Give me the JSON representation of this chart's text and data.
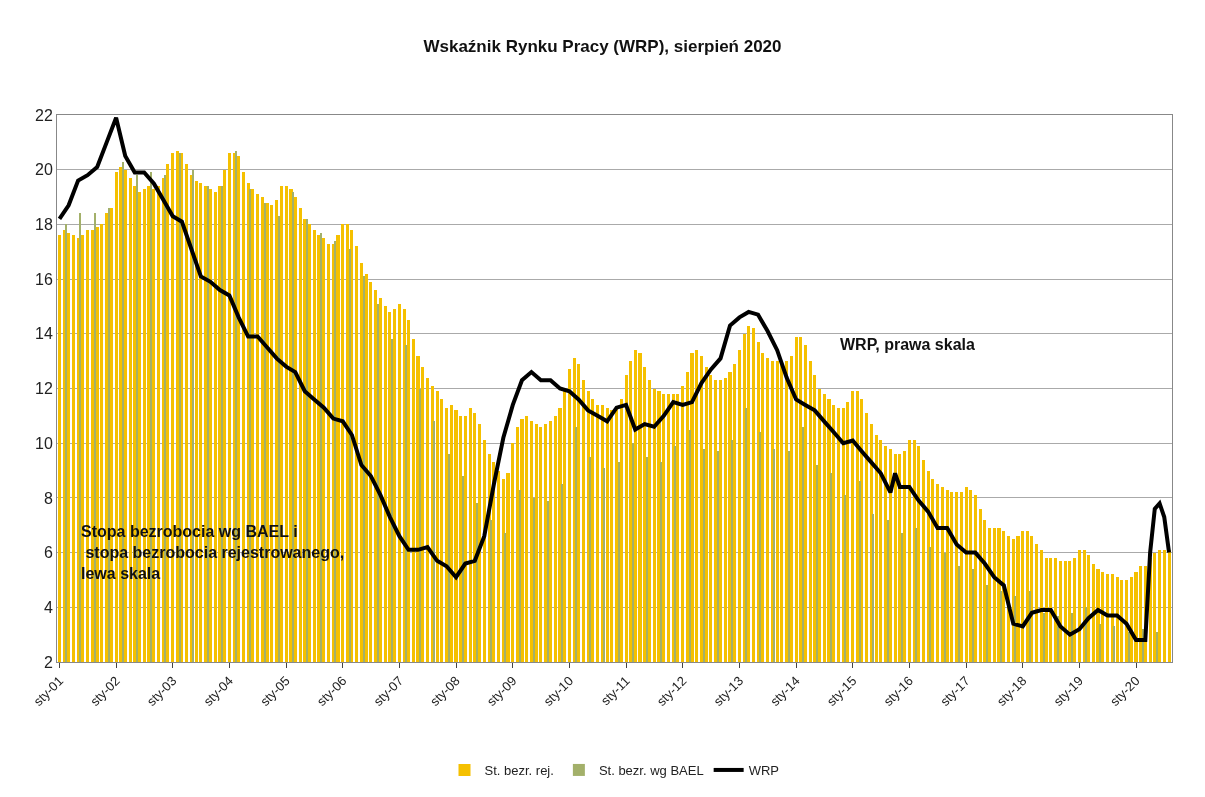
{
  "chart_data": {
    "type": "bar",
    "title": "Wskaźnik Rynku Pracy (WRP), sierpień 2020",
    "annotations": [
      "Stopa bezrobocia wg BAEL i\n stopa bezrobocia rejestrowanego,\nlewa skala",
      "WRP, prawa skala"
    ],
    "ylim": [
      2,
      22
    ],
    "yticks": [
      2,
      4,
      6,
      8,
      10,
      12,
      14,
      16,
      18,
      20,
      22
    ],
    "xlim": [
      "2000-12-16",
      "2020-08-20"
    ],
    "xticks": [
      {
        "value": "2001-01-01",
        "label": "sty-01"
      },
      {
        "value": "2002-01-01",
        "label": "sty-02"
      },
      {
        "value": "2003-01-01",
        "label": "sty-03"
      },
      {
        "value": "2004-01-01",
        "label": "sty-04"
      },
      {
        "value": "2005-01-01",
        "label": "sty-05"
      },
      {
        "value": "2006-01-01",
        "label": "sty-06"
      },
      {
        "value": "2007-01-01",
        "label": "sty-07"
      },
      {
        "value": "2008-01-01",
        "label": "sty-08"
      },
      {
        "value": "2009-01-01",
        "label": "sty-09"
      },
      {
        "value": "2010-01-01",
        "label": "sty-10"
      },
      {
        "value": "2011-01-01",
        "label": "sty-11"
      },
      {
        "value": "2012-01-01",
        "label": "sty-12"
      },
      {
        "value": "2013-01-01",
        "label": "sty-13"
      },
      {
        "value": "2014-01-01",
        "label": "sty-14"
      },
      {
        "value": "2015-01-01",
        "label": "sty-15"
      },
      {
        "value": "2016-01-01",
        "label": "sty-16"
      },
      {
        "value": "2017-01-01",
        "label": "sty-17"
      },
      {
        "value": "2018-01-01",
        "label": "sty-18"
      },
      {
        "value": "2019-01-01",
        "label": "sty-19"
      },
      {
        "value": "2020-01-01",
        "label": "sty-20"
      }
    ],
    "grid": "y",
    "legend": "bottom",
    "series": [
      {
        "name": "St. bezr. rej.",
        "color": "#f5c000",
        "x": [
          "2001-01",
          "2001-02",
          "2001-03",
          "2001-04",
          "2001-05",
          "2001-06",
          "2001-07",
          "2001-08",
          "2001-09",
          "2001-10",
          "2001-11",
          "2001-12",
          "2002-01",
          "2002-02",
          "2002-03",
          "2002-04",
          "2002-05",
          "2002-06",
          "2002-07",
          "2002-08",
          "2002-09",
          "2002-10",
          "2002-11",
          "2002-12",
          "2003-01",
          "2003-02",
          "2003-03",
          "2003-04",
          "2003-05",
          "2003-06",
          "2003-07",
          "2003-08",
          "2003-09",
          "2003-10",
          "2003-11",
          "2003-12",
          "2004-01",
          "2004-02",
          "2004-03",
          "2004-04",
          "2004-05",
          "2004-06",
          "2004-07",
          "2004-08",
          "2004-09",
          "2004-10",
          "2004-11",
          "2004-12",
          "2005-01",
          "2005-02",
          "2005-03",
          "2005-04",
          "2005-05",
          "2005-06",
          "2005-07",
          "2005-08",
          "2005-09",
          "2005-10",
          "2005-11",
          "2005-12",
          "2006-01",
          "2006-02",
          "2006-03",
          "2006-04",
          "2006-05",
          "2006-06",
          "2006-07",
          "2006-08",
          "2006-09",
          "2006-10",
          "2006-11",
          "2006-12",
          "2007-01",
          "2007-02",
          "2007-03",
          "2007-04",
          "2007-05",
          "2007-06",
          "2007-07",
          "2007-08",
          "2007-09",
          "2007-10",
          "2007-11",
          "2007-12",
          "2008-01",
          "2008-02",
          "2008-03",
          "2008-04",
          "2008-05",
          "2008-06",
          "2008-07",
          "2008-08",
          "2008-09",
          "2008-10",
          "2008-11",
          "2008-12",
          "2009-01",
          "2009-02",
          "2009-03",
          "2009-04",
          "2009-05",
          "2009-06",
          "2009-07",
          "2009-08",
          "2009-09",
          "2009-10",
          "2009-11",
          "2009-12",
          "2010-01",
          "2010-02",
          "2010-03",
          "2010-04",
          "2010-05",
          "2010-06",
          "2010-07",
          "2010-08",
          "2010-09",
          "2010-10",
          "2010-11",
          "2010-12",
          "2011-01",
          "2011-02",
          "2011-03",
          "2011-04",
          "2011-05",
          "2011-06",
          "2011-07",
          "2011-08",
          "2011-09",
          "2011-10",
          "2011-11",
          "2011-12",
          "2012-01",
          "2012-02",
          "2012-03",
          "2012-04",
          "2012-05",
          "2012-06",
          "2012-07",
          "2012-08",
          "2012-09",
          "2012-10",
          "2012-11",
          "2012-12",
          "2013-01",
          "2013-02",
          "2013-03",
          "2013-04",
          "2013-05",
          "2013-06",
          "2013-07",
          "2013-08",
          "2013-09",
          "2013-10",
          "2013-11",
          "2013-12",
          "2014-01",
          "2014-02",
          "2014-03",
          "2014-04",
          "2014-05",
          "2014-06",
          "2014-07",
          "2014-08",
          "2014-09",
          "2014-10",
          "2014-11",
          "2014-12",
          "2015-01",
          "2015-02",
          "2015-03",
          "2015-04",
          "2015-05",
          "2015-06",
          "2015-07",
          "2015-08",
          "2015-09",
          "2015-10",
          "2015-11",
          "2015-12",
          "2016-01",
          "2016-02",
          "2016-03",
          "2016-04",
          "2016-05",
          "2016-06",
          "2016-07",
          "2016-08",
          "2016-09",
          "2016-10",
          "2016-11",
          "2016-12",
          "2017-01",
          "2017-02",
          "2017-03",
          "2017-04",
          "2017-05",
          "2017-06",
          "2017-07",
          "2017-08",
          "2017-09",
          "2017-10",
          "2017-11",
          "2017-12",
          "2018-01",
          "2018-02",
          "2018-03",
          "2018-04",
          "2018-05",
          "2018-06",
          "2018-07",
          "2018-08",
          "2018-09",
          "2018-10",
          "2018-11",
          "2018-12",
          "2019-01",
          "2019-02",
          "2019-03",
          "2019-04",
          "2019-05",
          "2019-06",
          "2019-07",
          "2019-08",
          "2019-09",
          "2019-10",
          "2019-11",
          "2019-12",
          "2020-01",
          "2020-02",
          "2020-03",
          "2020-04",
          "2020-05",
          "2020-06",
          "2020-07",
          "2020-08"
        ],
        "values": [
          17.6,
          17.8,
          17.7,
          17.6,
          17.5,
          17.6,
          17.8,
          17.8,
          17.9,
          18.0,
          18.4,
          18.6,
          19.9,
          20.1,
          20.0,
          19.7,
          19.4,
          19.2,
          19.3,
          19.4,
          19.3,
          19.4,
          19.7,
          20.2,
          20.6,
          20.7,
          20.6,
          20.2,
          19.8,
          19.6,
          19.5,
          19.4,
          19.3,
          19.2,
          19.4,
          20.0,
          20.6,
          20.6,
          20.5,
          19.9,
          19.5,
          19.3,
          19.1,
          19.0,
          18.8,
          18.7,
          18.9,
          19.4,
          19.4,
          19.3,
          19.0,
          18.6,
          18.2,
          18.0,
          17.8,
          17.6,
          17.5,
          17.3,
          17.3,
          17.6,
          18.0,
          18.0,
          17.8,
          17.2,
          16.6,
          16.2,
          15.9,
          15.6,
          15.3,
          15.0,
          14.8,
          14.9,
          15.1,
          14.9,
          14.5,
          13.8,
          13.2,
          12.8,
          12.4,
          12.1,
          11.9,
          11.6,
          11.3,
          11.4,
          11.2,
          11.0,
          11.0,
          11.3,
          11.1,
          10.7,
          10.1,
          9.6,
          9.3,
          9.0,
          8.7,
          8.9,
          10.0,
          10.6,
          10.9,
          11.0,
          10.8,
          10.7,
          10.6,
          10.7,
          10.8,
          11.0,
          11.3,
          11.9,
          12.7,
          13.1,
          12.9,
          12.3,
          11.9,
          11.6,
          11.4,
          11.4,
          11.3,
          11.2,
          11.3,
          11.6,
          12.5,
          13.0,
          13.4,
          13.3,
          12.8,
          12.3,
          12.0,
          11.9,
          11.8,
          11.8,
          11.8,
          11.8,
          12.1,
          12.6,
          13.3,
          13.4,
          13.2,
          12.8,
          12.5,
          12.3,
          12.3,
          12.4,
          12.6,
          12.9,
          13.4,
          14.0,
          14.3,
          14.2,
          13.7,
          13.3,
          13.1,
          13.0,
          13.0,
          13.0,
          13.0,
          13.2,
          13.9,
          13.9,
          13.6,
          13.0,
          12.5,
          12.0,
          11.8,
          11.6,
          11.4,
          11.3,
          11.3,
          11.5,
          11.9,
          11.9,
          11.6,
          11.1,
          10.7,
          10.3,
          10.1,
          9.9,
          9.8,
          9.6,
          9.6,
          9.7,
          10.1,
          10.1,
          9.9,
          9.4,
          9.0,
          8.7,
          8.5,
          8.4,
          8.3,
          8.2,
          8.2,
          8.2,
          8.4,
          8.3,
          8.1,
          7.6,
          7.2,
          6.9,
          6.9,
          6.9,
          6.8,
          6.6,
          6.5,
          6.6,
          6.8,
          6.8,
          6.6,
          6.3,
          6.1,
          5.8,
          5.8,
          5.8,
          5.7,
          5.7,
          5.7,
          5.8,
          6.1,
          6.1,
          5.9,
          5.6,
          5.4,
          5.3,
          5.2,
          5.2,
          5.1,
          5.0,
          5.0,
          5.1,
          5.3,
          5.5,
          5.5,
          5.8,
          6.0,
          6.1,
          6.1,
          6.1
        ]
      },
      {
        "name": "St. bezr. wg BAEL",
        "color": "#a3b06a",
        "x": [
          "2001-02",
          "2001-05",
          "2001-08",
          "2001-11",
          "2002-02",
          "2002-05",
          "2002-08",
          "2002-11",
          "2003-02",
          "2003-05",
          "2003-08",
          "2003-11",
          "2004-02",
          "2004-05",
          "2004-08",
          "2004-11",
          "2005-02",
          "2005-05",
          "2005-08",
          "2005-11",
          "2006-02",
          "2006-05",
          "2006-08",
          "2006-11",
          "2007-02",
          "2007-05",
          "2007-08",
          "2007-11",
          "2008-02",
          "2008-05",
          "2008-08",
          "2008-11",
          "2009-02",
          "2009-05",
          "2009-08",
          "2009-11",
          "2010-02",
          "2010-05",
          "2010-08",
          "2010-11",
          "2011-02",
          "2011-05",
          "2011-08",
          "2011-11",
          "2012-02",
          "2012-05",
          "2012-08",
          "2012-11",
          "2013-02",
          "2013-05",
          "2013-08",
          "2013-11",
          "2014-02",
          "2014-05",
          "2014-08",
          "2014-11",
          "2015-02",
          "2015-05",
          "2015-08",
          "2015-11",
          "2016-02",
          "2016-05",
          "2016-08",
          "2016-11",
          "2017-02",
          "2017-05",
          "2017-08",
          "2017-11",
          "2018-02",
          "2018-05",
          "2018-08",
          "2018-11",
          "2019-02",
          "2019-05",
          "2019-08",
          "2019-11",
          "2020-02",
          "2020-05"
        ],
        "values": [
          18.0,
          18.4,
          18.4,
          18.6,
          20.3,
          19.8,
          19.9,
          19.8,
          20.6,
          20.0,
          19.4,
          19.4,
          20.7,
          19.3,
          18.8,
          18.3,
          19.2,
          18.2,
          17.7,
          17.4,
          17.1,
          16.1,
          15.1,
          13.8,
          13.6,
          12.0,
          10.8,
          9.6,
          8.8,
          7.8,
          7.2,
          6.7,
          8.3,
          8.0,
          7.9,
          8.5,
          10.6,
          9.5,
          9.1,
          9.3,
          10.0,
          9.5,
          9.3,
          9.9,
          10.5,
          9.8,
          9.7,
          10.1,
          11.3,
          10.4,
          9.8,
          9.7,
          10.6,
          9.2,
          8.9,
          8.1,
          8.6,
          7.4,
          7.2,
          6.7,
          6.9,
          6.2,
          6.0,
          5.5,
          5.4,
          4.8,
          4.6,
          4.4,
          4.6,
          3.8,
          3.7,
          3.8,
          4.0,
          3.4,
          3.3,
          3.1,
          3.2,
          3.1
        ]
      },
      {
        "name": "WRP",
        "type": "line",
        "color": "#000000",
        "x": [
          "2001-01",
          "2001-03",
          "2001-05",
          "2001-07",
          "2001-09",
          "2001-11",
          "2002-01",
          "2002-03",
          "2002-05",
          "2002-07",
          "2002-09",
          "2002-11",
          "2003-01",
          "2003-03",
          "2003-05",
          "2003-07",
          "2003-09",
          "2003-11",
          "2004-01",
          "2004-03",
          "2004-05",
          "2004-07",
          "2004-09",
          "2004-11",
          "2005-01",
          "2005-03",
          "2005-05",
          "2005-07",
          "2005-09",
          "2005-11",
          "2006-01",
          "2006-03",
          "2006-05",
          "2006-07",
          "2006-09",
          "2006-11",
          "2007-01",
          "2007-03",
          "2007-05",
          "2007-07",
          "2007-09",
          "2007-11",
          "2008-01",
          "2008-03",
          "2008-05",
          "2008-07",
          "2008-09",
          "2008-11",
          "2009-01",
          "2009-03",
          "2009-05",
          "2009-07",
          "2009-09",
          "2009-11",
          "2010-01",
          "2010-03",
          "2010-05",
          "2010-07",
          "2010-09",
          "2010-11",
          "2011-01",
          "2011-03",
          "2011-05",
          "2011-07",
          "2011-09",
          "2011-11",
          "2012-01",
          "2012-03",
          "2012-05",
          "2012-07",
          "2012-09",
          "2012-11",
          "2013-01",
          "2013-03",
          "2013-05",
          "2013-07",
          "2013-09",
          "2013-11",
          "2014-01",
          "2014-03",
          "2014-05",
          "2014-07",
          "2014-09",
          "2014-11",
          "2015-01",
          "2015-03",
          "2015-05",
          "2015-07",
          "2015-09",
          "2015-10",
          "2015-11",
          "2016-01",
          "2016-03",
          "2016-05",
          "2016-07",
          "2016-09",
          "2016-11",
          "2017-01",
          "2017-03",
          "2017-05",
          "2017-07",
          "2017-09",
          "2017-11",
          "2018-01",
          "2018-03",
          "2018-05",
          "2018-07",
          "2018-09",
          "2018-11",
          "2019-01",
          "2019-03",
          "2019-05",
          "2019-07",
          "2019-09",
          "2019-11",
          "2020-01",
          "2020-03",
          "2020-04",
          "2020-05",
          "2020-06",
          "2020-07",
          "2020-08"
        ],
        "values": [
          18.2,
          18.7,
          19.6,
          19.8,
          20.1,
          21.0,
          21.9,
          20.5,
          19.9,
          19.9,
          19.5,
          18.9,
          18.3,
          18.1,
          17.1,
          16.1,
          15.9,
          15.6,
          15.4,
          14.6,
          13.9,
          13.9,
          13.5,
          13.1,
          12.8,
          12.6,
          11.9,
          11.6,
          11.3,
          10.9,
          10.8,
          10.3,
          9.2,
          8.8,
          8.1,
          7.3,
          6.6,
          6.1,
          6.1,
          6.2,
          5.7,
          5.5,
          5.1,
          5.6,
          5.7,
          6.6,
          8.5,
          10.2,
          11.4,
          12.3,
          12.6,
          12.3,
          12.3,
          12.0,
          11.9,
          11.6,
          11.2,
          11.0,
          10.8,
          11.3,
          11.4,
          10.5,
          10.7,
          10.6,
          11.0,
          11.5,
          11.4,
          11.5,
          12.2,
          12.7,
          13.1,
          14.3,
          14.6,
          14.8,
          14.7,
          14.1,
          13.4,
          12.4,
          11.6,
          11.4,
          11.2,
          10.8,
          10.4,
          10.0,
          10.1,
          9.7,
          9.3,
          8.9,
          8.2,
          8.9,
          8.4,
          8.4,
          7.9,
          7.5,
          6.9,
          6.9,
          6.3,
          6.0,
          6.0,
          5.6,
          5.1,
          4.8,
          3.4,
          3.3,
          3.8,
          3.9,
          3.9,
          3.3,
          3.0,
          3.2,
          3.6,
          3.9,
          3.7,
          3.7,
          3.4,
          2.8,
          2.8,
          6.0,
          7.6,
          7.8,
          7.3,
          6.0
        ]
      }
    ]
  }
}
